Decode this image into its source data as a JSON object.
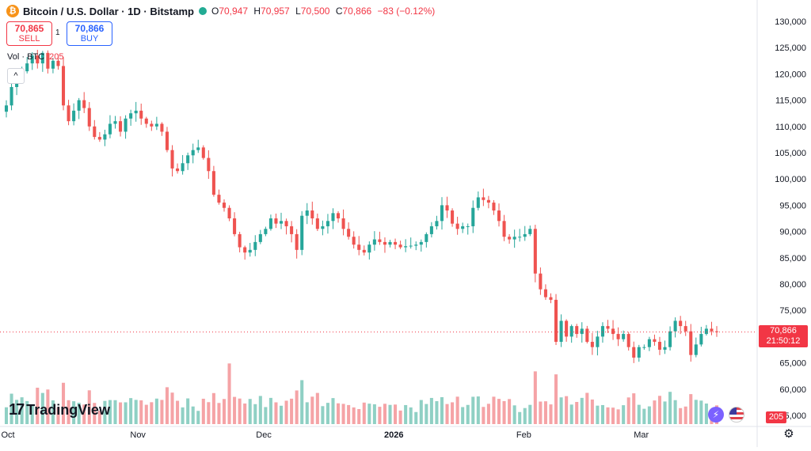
{
  "header": {
    "coin_symbol": "₿",
    "title": "Bitcoin / U.S. Dollar · 1D · Bitstamp",
    "ohlc": {
      "o_label": "O",
      "o": "70,947",
      "h_label": "H",
      "h": "70,957",
      "l_label": "L",
      "l": "70,500",
      "c_label": "C",
      "c": "70,866",
      "change": "−83 (−0.12%)"
    }
  },
  "trade": {
    "sell_price": "70,865",
    "sell_label": "SELL",
    "spread": "1",
    "buy_price": "70,866",
    "buy_label": "BUY"
  },
  "volume_legend": {
    "label": "Vol · BTC",
    "value": "205"
  },
  "collapse_glyph": "^",
  "current_price": {
    "price": "70,866",
    "countdown": "21:50:12"
  },
  "volume_tag": "205",
  "brand": {
    "mark": "17",
    "name": "TradingView"
  },
  "colors": {
    "up": "#26a69a",
    "down": "#ef5350",
    "vol_up": "#8fd0c4",
    "vol_down": "#f5a3a6",
    "last_line": "#f23645"
  },
  "icons": {
    "bolt": "⚡",
    "settings": "⚙"
  },
  "chart_data": {
    "type": "candlestick",
    "interval": "1D",
    "y_axis_ticks": [
      130000,
      125000,
      120000,
      115000,
      110000,
      105000,
      100000,
      95000,
      90000,
      85000,
      80000,
      75000,
      70000,
      65000,
      60000,
      55000
    ],
    "y_axis_labels": [
      "130,000",
      "125,000",
      "120,000",
      "115,000",
      "110,000",
      "105,000",
      "100,000",
      "95,000",
      "90,000",
      "85,000",
      "80,000",
      "75,000",
      "70,000",
      "65,000",
      "60,000",
      "55,000"
    ],
    "ylim": [
      53500,
      131500
    ],
    "x_axis_labels": [
      {
        "label": "Oct",
        "date": "2025-10-01"
      },
      {
        "label": "Nov",
        "date": "2025-11-01"
      },
      {
        "label": "Dec",
        "date": "2025-12-01"
      },
      {
        "label": "2026",
        "date": "2026-01-01"
      },
      {
        "label": "Feb",
        "date": "2026-02-01"
      },
      {
        "label": "Mar",
        "date": "2026-03-01"
      }
    ],
    "x_range": [
      "2025-10-01",
      "2026-03-19"
    ],
    "last_price": 70866,
    "close_series": [
      114000,
      117500,
      119000,
      120500,
      122000,
      123500,
      122000,
      124000,
      121000,
      122500,
      121500,
      114000,
      111000,
      113000,
      115000,
      113500,
      110000,
      108000,
      107500,
      108500,
      110500,
      111000,
      109000,
      111500,
      112500,
      113000,
      111500,
      110500,
      110000,
      110500,
      109000,
      105500,
      102000,
      101500,
      103000,
      104500,
      105500,
      106000,
      104000,
      101500,
      97000,
      95500,
      94500,
      92500,
      89500,
      87000,
      86000,
      86500,
      88000,
      89500,
      90500,
      92500,
      91500,
      92000,
      91000,
      89500,
      86500,
      93000,
      94000,
      92500,
      90500,
      91000,
      92000,
      93500,
      92500,
      90500,
      89000,
      87500,
      86500,
      86000,
      87500,
      88500,
      88000,
      87500,
      88000,
      87500,
      87000,
      87200,
      87300,
      87500,
      88000,
      89500,
      91000,
      92000,
      95000,
      94000,
      91500,
      90500,
      91000,
      91000,
      94500,
      96500,
      96000,
      95500,
      94000,
      92000,
      89000,
      88500,
      89000,
      89000,
      89500,
      90500,
      82000,
      79000,
      77500,
      77000,
      69000,
      73000,
      70000,
      72000,
      70500,
      71500,
      69000,
      68000,
      70000,
      72000,
      71500,
      70500,
      69500,
      70500,
      68000,
      66000,
      68000,
      68000,
      69500,
      69000,
      67500,
      68000,
      71000,
      73000,
      72000,
      71000,
      66500,
      68500,
      70500,
      71500,
      71000,
      70866
    ],
    "volume_ylim": [
      0,
      120000
    ],
    "volume_unit": "BTC",
    "last_volume": 205
  }
}
